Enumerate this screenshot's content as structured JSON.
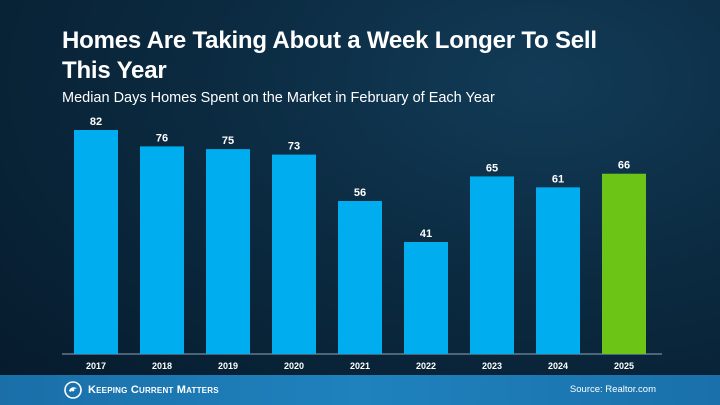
{
  "title": "Homes Are Taking About a Week Longer To Sell This Year",
  "subtitle": "Median Days Homes Spent on the Market in February of Each Year",
  "footer": {
    "brand": "Keeping Current Matters",
    "source": "Source: Realtor.com"
  },
  "colors": {
    "bar": "#00aeef",
    "highlight": "#6cc417"
  },
  "chart_data": {
    "type": "bar",
    "title": "Homes Are Taking About a Week Longer To Sell This Year",
    "subtitle": "Median Days Homes Spent on the Market in February of Each Year",
    "categories": [
      "2017",
      "2018",
      "2019",
      "2020",
      "2021",
      "2022",
      "2023",
      "2024",
      "2025"
    ],
    "values": [
      82,
      76,
      75,
      73,
      56,
      41,
      65,
      61,
      66
    ],
    "highlight_category": "2025",
    "ylim": [
      0,
      82
    ],
    "grid": false,
    "data_labels": true
  }
}
